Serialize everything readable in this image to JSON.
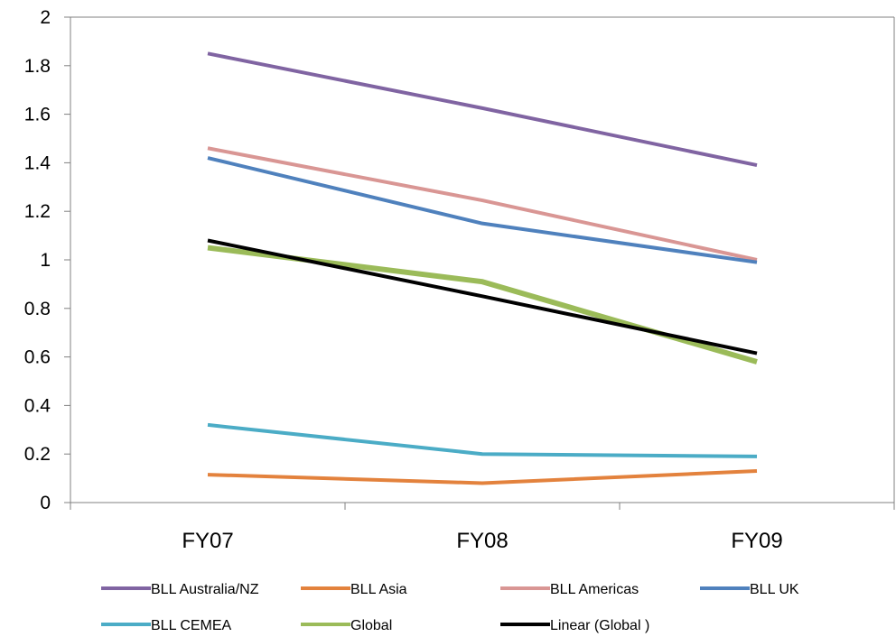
{
  "chart_data": {
    "type": "line",
    "categories": [
      "FY07",
      "FY08",
      "FY09"
    ],
    "ylim": [
      0,
      2
    ],
    "yticks": [
      "0",
      "0.2",
      "0.4",
      "0.6",
      "0.8",
      "1",
      "1.2",
      "1.4",
      "1.6",
      "1.8",
      "2"
    ],
    "grid": false,
    "legend_position": "bottom",
    "series": [
      {
        "name": "BLL Australia/NZ",
        "color": "#8064a2",
        "values": [
          1.85,
          1.625,
          1.39
        ]
      },
      {
        "name": "BLL Asia",
        "color": "#e3823d",
        "values": [
          0.115,
          0.08,
          0.13
        ]
      },
      {
        "name": "BLL Americas",
        "color": "#d99694",
        "values": [
          1.46,
          1.245,
          1.0
        ]
      },
      {
        "name": "BLL UK",
        "color": "#4f81bd",
        "values": [
          1.42,
          1.15,
          0.99
        ]
      },
      {
        "name": "BLL CEMEA",
        "color": "#4bacc6",
        "values": [
          0.32,
          0.2,
          0.19
        ]
      },
      {
        "name": "Global",
        "color": "#9bbb59",
        "values": [
          1.05,
          0.91,
          0.58
        ]
      },
      {
        "name": "Linear (Global )",
        "color": "#000000",
        "values": [
          1.08,
          0.85,
          0.615
        ]
      }
    ]
  }
}
